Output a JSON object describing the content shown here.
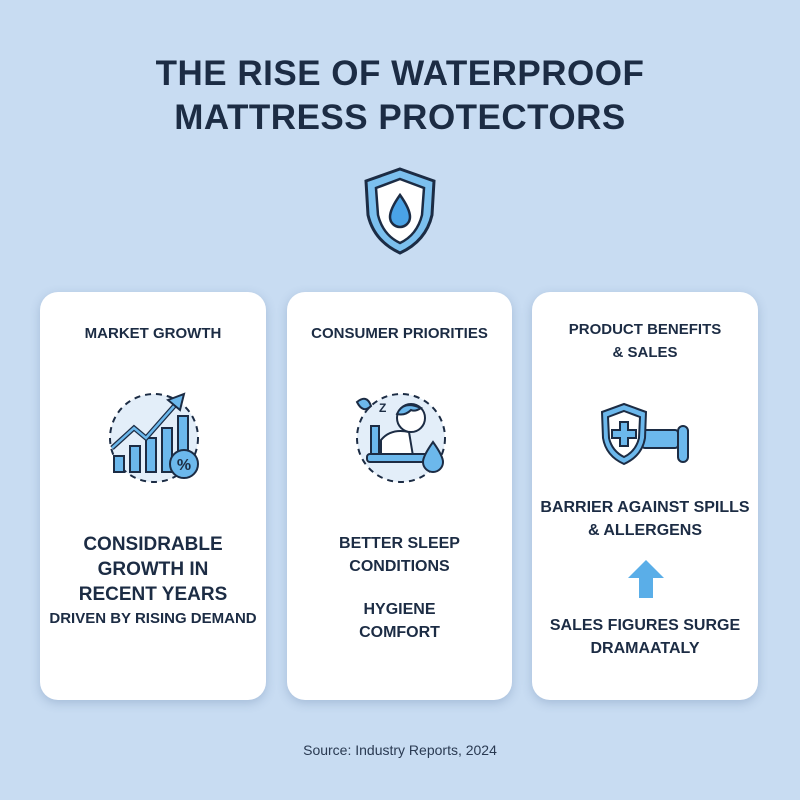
{
  "title_line1": "THE RISE OF WATERPROOF",
  "title_line2": "MATTRESS PROTECTORS",
  "header_icon": "shield-water-drop-icon",
  "cards": [
    {
      "heading": "MARKET GROWTH",
      "icon": "growth-chart-percent-icon",
      "main_lines": [
        "CONSIDRABLE",
        "GROWTH IN",
        "RECENT YEARS"
      ],
      "sub": "DRIVEN BY RISING DEMAND"
    },
    {
      "heading": "CONSUMER PRIORITIES",
      "icon": "sleeping-person-icon",
      "lines_a": [
        "BETTER SLEEP",
        "CONDITIONS"
      ],
      "lines_b": [
        "HYGIENE",
        "COMFORT"
      ]
    },
    {
      "heading_line1": "PRODUCT BENEFITS",
      "heading_line2": "& SALES",
      "icon": "shield-bed-icon",
      "lines_a": [
        "BARRIER AGAINST SPILLS",
        "& ALLERGENS"
      ],
      "arrow_icon": "arrow-up-icon",
      "lines_b": [
        "SALES FIGURES SURGE",
        "DRAMAATALY"
      ]
    }
  ],
  "source": "Source: Industry Reports, 2024",
  "colors": {
    "background": "#c8dcf2",
    "accent": "#5aaee8",
    "text": "#1c2c44"
  }
}
